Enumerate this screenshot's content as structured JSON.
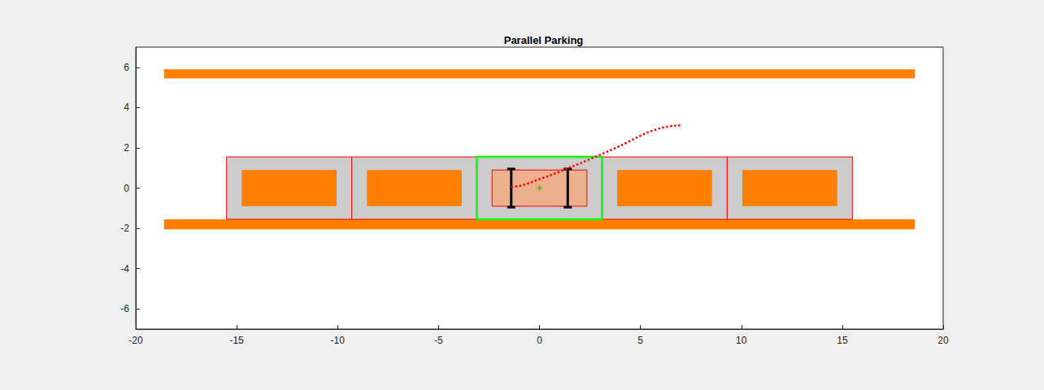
{
  "chart_data": {
    "type": "line",
    "title": "Parallel Parking",
    "xlim": [
      -20,
      20
    ],
    "xticks": [
      -20,
      -15,
      -10,
      -5,
      0,
      5,
      10,
      15,
      20
    ],
    "ylim": [
      -7,
      7
    ],
    "yticks": [
      -6,
      -4,
      -2,
      0,
      2,
      4,
      6
    ],
    "grid": false,
    "shapes": {
      "curbs": {
        "color": "#ff8000",
        "boxes": [
          [
            -18.6,
            5.45,
            18.6,
            5.9
          ],
          [
            -18.6,
            -2.05,
            18.6,
            -1.55
          ]
        ]
      },
      "spots": {
        "color": "#cccccc",
        "edge": "#ff0000",
        "boxes": [
          [
            -15.5,
            -1.55,
            -9.3,
            1.55
          ],
          [
            -9.3,
            -1.55,
            -3.1,
            1.55
          ],
          [
            -3.1,
            -1.55,
            3.1,
            1.55
          ],
          [
            3.1,
            -1.55,
            9.3,
            1.55
          ],
          [
            9.3,
            -1.55,
            15.5,
            1.55
          ]
        ]
      },
      "parked_cars": {
        "color": "#ff8000",
        "boxes": [
          [
            -14.75,
            -0.9,
            -10.05,
            0.9
          ],
          [
            -8.55,
            -0.9,
            -3.85,
            0.9
          ],
          [
            3.85,
            -0.9,
            8.55,
            0.9
          ],
          [
            10.05,
            -0.9,
            14.75,
            0.9
          ]
        ]
      },
      "target_spot": {
        "edge": "#00ff00",
        "boxes": [
          [
            -3.1,
            -1.55,
            3.1,
            1.55
          ]
        ]
      },
      "ego_car": {
        "color": "#edb08e",
        "edge": "#ff0000",
        "boxes": [
          [
            -2.35,
            -0.9,
            2.35,
            0.9
          ]
        ]
      },
      "axles": {
        "color": "#000000",
        "segments": [
          [
            -1.4,
            -0.95,
            -1.4,
            0.95
          ],
          [
            1.4,
            -0.95,
            1.4,
            0.95
          ]
        ]
      }
    },
    "center": {
      "x": 0,
      "y": 0,
      "color": "#77ac30",
      "marker": "asterisk"
    },
    "path": {
      "x": [
        -1.4,
        -1.0,
        -0.5,
        0,
        0.5,
        1.0,
        1.5,
        2.0,
        2.5,
        3.0,
        3.5,
        4.0,
        4.5,
        5.0,
        5.5,
        6.0,
        6.5,
        7.0
      ],
      "values": [
        0.05,
        0.1,
        0.25,
        0.45,
        0.62,
        0.82,
        1.02,
        1.22,
        1.44,
        1.65,
        1.87,
        2.1,
        2.35,
        2.6,
        2.82,
        2.98,
        3.08,
        3.12
      ],
      "color": "#ff0000",
      "line_style": "dotted"
    }
  }
}
